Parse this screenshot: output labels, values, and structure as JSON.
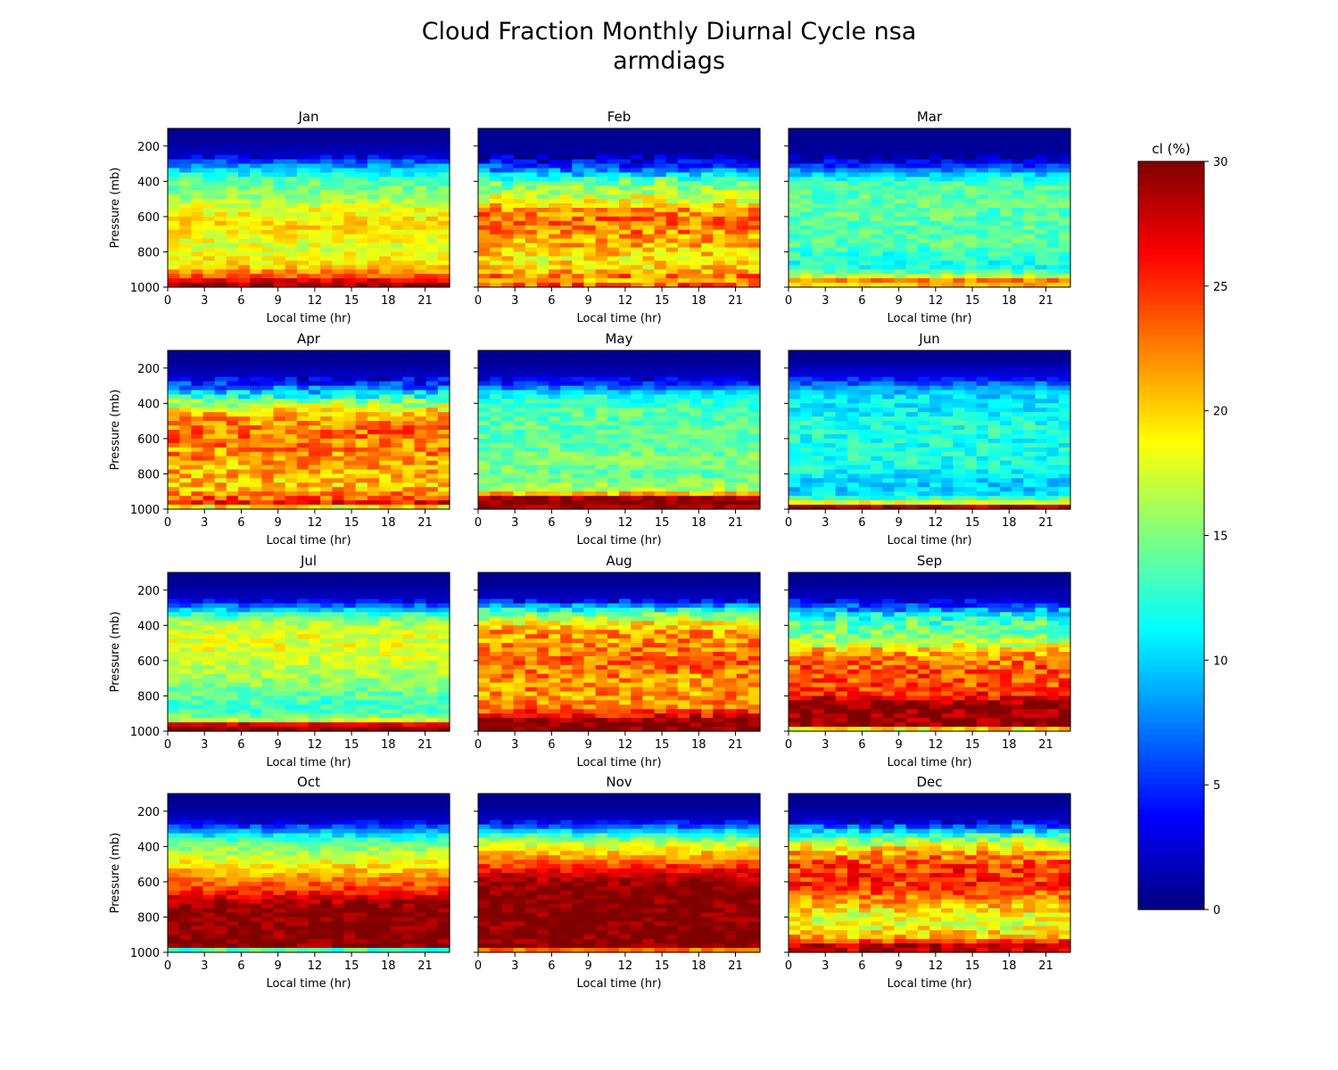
{
  "chart_data": {
    "type": "heatmap",
    "title": "Cloud Fraction Monthly Diurnal Cycle nsa",
    "subtitle": "armdiags",
    "xlabel": "Local time (hr)",
    "ylabel": "Pressure (mb)",
    "xlim": [
      0,
      23
    ],
    "ylim": [
      1000,
      100
    ],
    "x_ticks": [
      0,
      3,
      6,
      9,
      12,
      15,
      18,
      21
    ],
    "y_ticks": [
      200,
      400,
      600,
      800,
      1000
    ],
    "colorbar": {
      "label": "cl (%)",
      "colormap": "jet",
      "range": [
        0,
        30
      ],
      "ticks": [
        0,
        5,
        10,
        15,
        20,
        25,
        30
      ]
    },
    "grid": false,
    "profile_levels_mb": [
      150,
      250,
      300,
      350,
      400,
      450,
      500,
      550,
      600,
      650,
      700,
      750,
      800,
      850,
      900,
      940,
      970,
      990
    ],
    "panels": [
      {
        "month": "Jan",
        "profile": [
          0.5,
          2,
          7,
          11,
          14,
          15,
          16,
          18,
          19,
          20,
          19,
          18,
          18,
          19,
          21,
          24,
          28,
          29
        ],
        "diurnal_var": 2
      },
      {
        "month": "Feb",
        "profile": [
          0.5,
          1,
          4,
          9,
          14,
          16,
          18,
          21,
          23,
          23,
          22,
          21,
          20,
          19,
          20,
          23,
          21,
          24
        ],
        "diurnal_var": 3
      },
      {
        "month": "Mar",
        "profile": [
          0.5,
          1,
          4,
          9,
          13,
          14,
          14,
          14,
          14,
          14,
          14,
          14,
          13,
          12,
          12,
          17,
          24,
          20
        ],
        "diurnal_var": 2
      },
      {
        "month": "Apr",
        "profile": [
          0.5,
          2,
          6,
          11,
          16,
          20,
          22,
          23,
          23,
          22,
          22,
          21,
          21,
          20,
          21,
          24,
          27,
          18
        ],
        "diurnal_var": 3
      },
      {
        "month": "May",
        "profile": [
          0.5,
          2,
          6,
          11,
          13,
          14,
          14,
          14,
          14,
          14,
          15,
          15,
          14,
          15,
          17,
          30,
          30,
          29
        ],
        "diurnal_var": 2
      },
      {
        "month": "Jun",
        "profile": [
          0.5,
          3,
          8,
          10,
          11,
          11,
          12,
          12,
          12,
          12,
          12,
          12,
          11,
          10,
          10,
          13,
          20,
          30
        ],
        "diurnal_var": 2
      },
      {
        "month": "Jul",
        "profile": [
          0.5,
          2,
          8,
          14,
          17,
          18,
          18,
          18,
          17,
          17,
          16,
          15,
          14,
          13,
          13,
          17,
          30,
          30
        ],
        "diurnal_var": 2
      },
      {
        "month": "Aug",
        "profile": [
          0.5,
          2,
          10,
          16,
          20,
          22,
          22,
          23,
          23,
          23,
          22,
          22,
          22,
          22,
          25,
          30,
          30,
          30
        ],
        "diurnal_var": 3
      },
      {
        "month": "Sep",
        "profile": [
          0.5,
          2,
          7,
          12,
          14,
          15,
          17,
          21,
          23,
          24,
          24,
          24,
          26,
          30,
          30,
          30,
          30,
          18
        ],
        "diurnal_var": 3
      },
      {
        "month": "Oct",
        "profile": [
          0.5,
          2,
          7,
          12,
          15,
          17,
          19,
          21,
          23,
          25,
          28,
          30,
          30,
          30,
          30,
          30,
          30,
          11
        ],
        "diurnal_var": 2
      },
      {
        "month": "Nov",
        "profile": [
          0.5,
          2,
          8,
          14,
          18,
          21,
          24,
          27,
          29,
          30,
          30,
          30,
          30,
          30,
          30,
          30,
          30,
          22
        ],
        "diurnal_var": 2
      },
      {
        "month": "Dec",
        "profile": [
          0.5,
          2,
          8,
          14,
          19,
          22,
          24,
          25,
          25,
          24,
          22,
          20,
          18,
          18,
          20,
          25,
          30,
          28
        ],
        "diurnal_var": 3
      }
    ]
  }
}
